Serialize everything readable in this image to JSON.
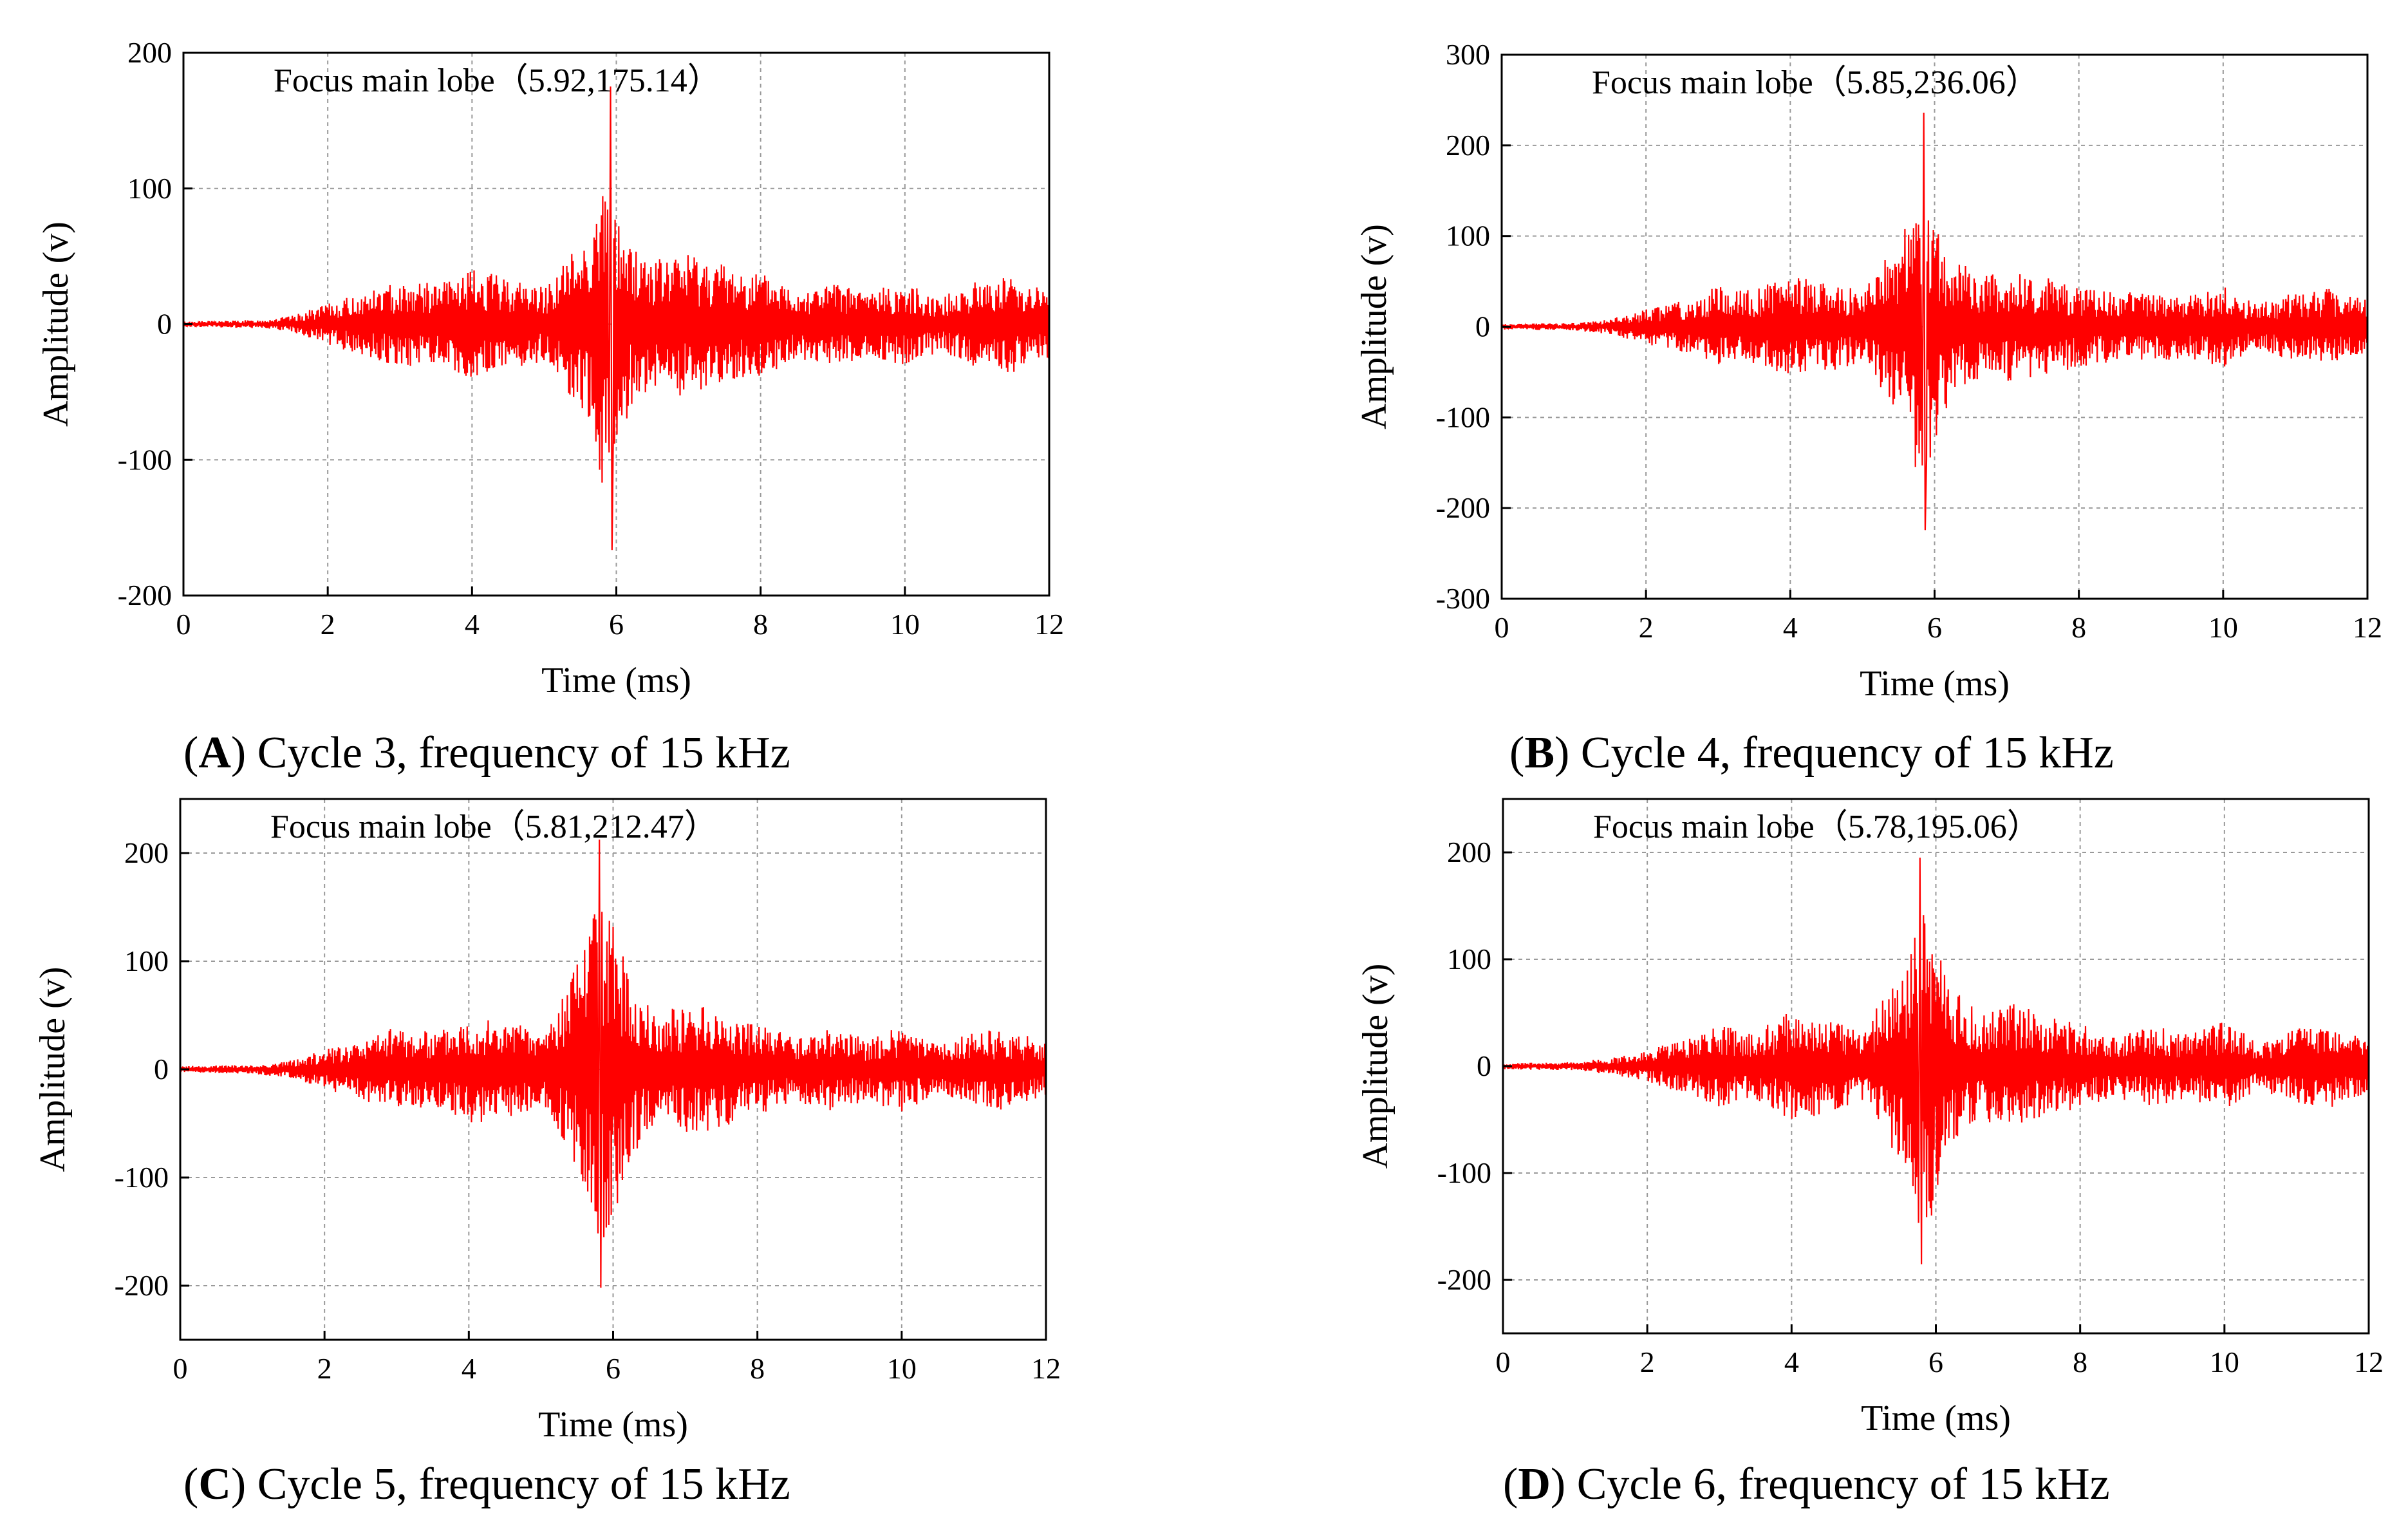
{
  "chart_data": [
    {
      "type": "line",
      "panel_letter": "A",
      "caption": "Cycle 3, frequency of 15 kHz",
      "xlabel": "Time (ms)",
      "ylabel": "Amplitude (v)",
      "xlim": [
        0,
        12
      ],
      "ylim": [
        -200,
        200
      ],
      "xticks": [
        0,
        2,
        4,
        6,
        8,
        10,
        12
      ],
      "yticks": [
        -200,
        -100,
        0,
        100,
        200
      ],
      "grid": true,
      "series_color": "#ff0000",
      "annotation": "Focus main lobe（5.92,175.14）",
      "peak": {
        "x": 5.92,
        "y": 175.14
      },
      "envelope": {
        "x": [
          0.0,
          1.0,
          1.5,
          2.0,
          2.6,
          3.0,
          3.5,
          4.0,
          4.5,
          5.0,
          5.3,
          5.6,
          5.8,
          6.0,
          6.2,
          6.6,
          7.0,
          7.5,
          8.0,
          8.5,
          9.0,
          9.5,
          10.0,
          10.5,
          11.0,
          11.5,
          12.0
        ],
        "upper": [
          2,
          3,
          6,
          15,
          25,
          32,
          30,
          40,
          35,
          28,
          48,
          70,
          100,
          80,
          60,
          48,
          55,
          45,
          38,
          28,
          30,
          25,
          30,
          20,
          32,
          36,
          25
        ],
        "lower": [
          -2,
          -3,
          -6,
          -15,
          -25,
          -32,
          -30,
          -40,
          -35,
          -28,
          -48,
          -70,
          -120,
          -95,
          -60,
          -48,
          -55,
          -45,
          -38,
          -28,
          -30,
          -25,
          -30,
          -20,
          -32,
          -36,
          -25
        ]
      }
    },
    {
      "type": "line",
      "panel_letter": "B",
      "caption": "Cycle 4, frequency of 15 kHz",
      "xlabel": "Time (ms)",
      "ylabel": "Amplitude (v)",
      "xlim": [
        0,
        12
      ],
      "ylim": [
        -300,
        300
      ],
      "xticks": [
        0,
        2,
        4,
        6,
        8,
        10,
        12
      ],
      "yticks": [
        -300,
        -200,
        -100,
        0,
        100,
        200,
        300
      ],
      "grid": true,
      "series_color": "#ff0000",
      "annotation": "Focus main lobe（5.85,236.06）",
      "peak": {
        "x": 5.85,
        "y": 236.06
      },
      "envelope": {
        "x": [
          0.0,
          1.0,
          1.5,
          2.0,
          2.6,
          3.0,
          3.5,
          4.0,
          4.5,
          5.0,
          5.3,
          5.6,
          5.8,
          6.0,
          6.2,
          6.6,
          7.0,
          7.5,
          8.0,
          8.5,
          9.0,
          9.5,
          10.0,
          10.5,
          11.0,
          11.5,
          12.0
        ],
        "upper": [
          3,
          4,
          8,
          20,
          30,
          45,
          40,
          58,
          50,
          40,
          75,
          110,
          160,
          120,
          80,
          60,
          60,
          55,
          45,
          38,
          40,
          35,
          45,
          25,
          40,
          42,
          30
        ],
        "lower": [
          -3,
          -4,
          -8,
          -20,
          -30,
          -45,
          -40,
          -58,
          -50,
          -40,
          -75,
          -110,
          -180,
          -140,
          -80,
          -60,
          -60,
          -55,
          -45,
          -38,
          -40,
          -35,
          -45,
          -25,
          -40,
          -42,
          -30
        ]
      }
    },
    {
      "type": "line",
      "panel_letter": "C",
      "caption": "Cycle 5, frequency of 15 kHz",
      "xlabel": "Time (ms)",
      "ylabel": "Amplitude (v)",
      "xlim": [
        0,
        12
      ],
      "ylim": [
        -250,
        250
      ],
      "xticks": [
        0,
        2,
        4,
        6,
        8,
        10,
        12
      ],
      "yticks": [
        -200,
        -100,
        0,
        100,
        200
      ],
      "grid": true,
      "series_color": "#ff0000",
      "annotation": "Focus main lobe（5.81,212.47）",
      "peak": {
        "x": 5.81,
        "y": 212.47
      },
      "envelope": {
        "x": [
          0.0,
          1.0,
          1.5,
          2.0,
          2.6,
          3.0,
          3.5,
          4.0,
          4.5,
          5.0,
          5.3,
          5.6,
          5.8,
          6.0,
          6.2,
          6.6,
          7.0,
          7.5,
          8.0,
          8.5,
          9.0,
          9.5,
          10.0,
          10.5,
          11.0,
          11.5,
          12.0
        ],
        "upper": [
          3,
          4,
          8,
          18,
          30,
          40,
          35,
          52,
          45,
          35,
          70,
          110,
          160,
          140,
          90,
          50,
          62,
          55,
          42,
          30,
          38,
          30,
          40,
          22,
          35,
          38,
          25
        ],
        "lower": [
          -3,
          -4,
          -8,
          -18,
          -30,
          -40,
          -35,
          -52,
          -45,
          -35,
          -70,
          -110,
          -170,
          -140,
          -90,
          -50,
          -62,
          -55,
          -42,
          -30,
          -38,
          -30,
          -40,
          -22,
          -35,
          -38,
          -25
        ]
      }
    },
    {
      "type": "line",
      "panel_letter": "D",
      "caption": "Cycle 6, frequency of 15 kHz",
      "xlabel": "Time (ms)",
      "ylabel": "Amplitude (v)",
      "xlim": [
        0,
        12
      ],
      "ylim": [
        -250,
        250
      ],
      "xticks": [
        0,
        2,
        4,
        6,
        8,
        10,
        12
      ],
      "yticks": [
        -200,
        -100,
        0,
        100,
        200
      ],
      "grid": true,
      "series_color": "#ff0000",
      "annotation": "Focus main lobe（5.78,195.06）",
      "peak": {
        "x": 5.78,
        "y": 195.06
      },
      "envelope": {
        "x": [
          0.0,
          1.0,
          1.5,
          2.0,
          2.6,
          3.0,
          3.5,
          4.0,
          4.5,
          5.0,
          5.3,
          5.6,
          5.8,
          6.0,
          6.2,
          6.6,
          7.0,
          7.5,
          8.0,
          8.5,
          9.0,
          9.5,
          10.0,
          10.5,
          11.0,
          11.5,
          12.0
        ],
        "upper": [
          3,
          4,
          8,
          15,
          28,
          38,
          32,
          52,
          45,
          35,
          68,
          100,
          150,
          120,
          75,
          50,
          60,
          50,
          40,
          30,
          38,
          30,
          42,
          22,
          35,
          38,
          25
        ],
        "lower": [
          -3,
          -4,
          -8,
          -15,
          -28,
          -38,
          -32,
          -52,
          -45,
          -35,
          -68,
          -100,
          -170,
          -130,
          -75,
          -50,
          -60,
          -50,
          -40,
          -30,
          -38,
          -30,
          -42,
          -22,
          -35,
          -38,
          -25
        ]
      }
    }
  ]
}
